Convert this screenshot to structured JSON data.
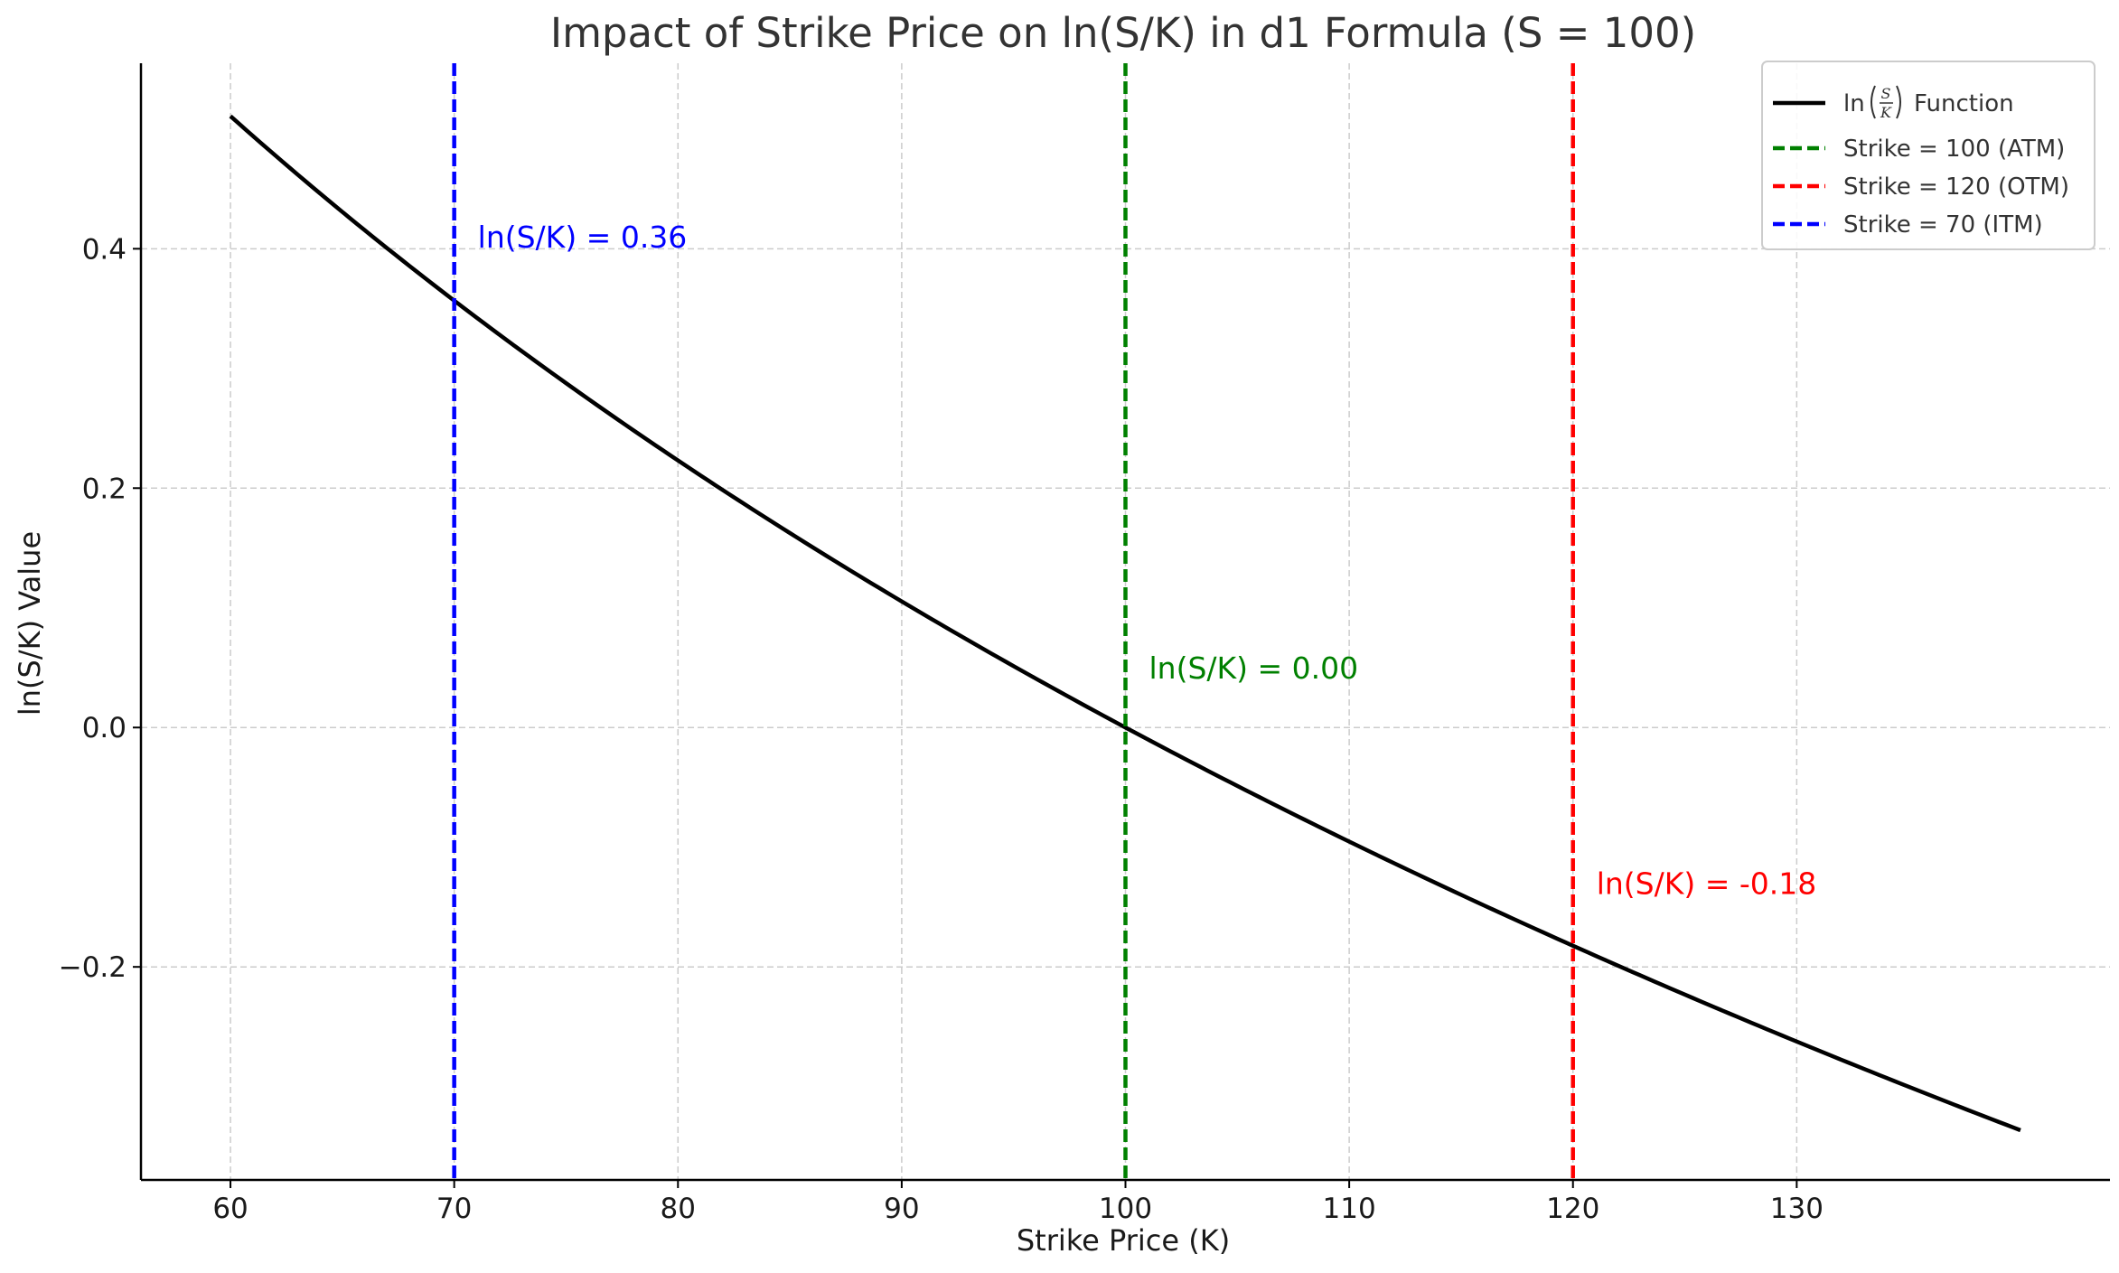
{
  "chart_data": {
    "type": "line",
    "title": "Impact of Strike Price on ln(S/K) in d1 Formula (S = 100)",
    "xlabel": "Strike Price (K)",
    "ylabel": "ln(S/K) Value",
    "xlim": [
      56,
      144
    ],
    "ylim": [
      -0.378,
      0.555
    ],
    "x_ticks": [
      60,
      70,
      80,
      90,
      100,
      110,
      120,
      130
    ],
    "x_tick_labels": [
      "60",
      "70",
      "80",
      "90",
      "100",
      "110",
      "120",
      "130"
    ],
    "y_ticks": [
      0.4,
      0.2,
      0.0,
      -0.2
    ],
    "y_tick_labels": [
      "0.4",
      "0.2",
      "0.0",
      "−0.2"
    ],
    "grid": true,
    "legend_position": "top-right",
    "S": 100,
    "curve": {
      "name": "ln(S/K) Function",
      "color": "#000000",
      "x_start": 60,
      "x_end": 140
    },
    "vlines": [
      {
        "name": "Strike = 100 (ATM)",
        "x": 100,
        "color": "#008000",
        "annotation": "ln(S/K) = 0.00",
        "annotation_y": 0.05
      },
      {
        "name": "Strike = 120 (OTM)",
        "x": 120,
        "color": "#ff0000",
        "annotation": "ln(S/K) = -0.18",
        "annotation_y": -0.13
      },
      {
        "name": "Strike = 70 (ITM)",
        "x": 70,
        "color": "#0000ff",
        "annotation": "ln(S/K) = 0.36",
        "annotation_y": 0.41
      }
    ],
    "legend": {
      "function_prefix": "ln",
      "frac_num": "S",
      "frac_den": "K",
      "function_suffix": "Function"
    }
  }
}
